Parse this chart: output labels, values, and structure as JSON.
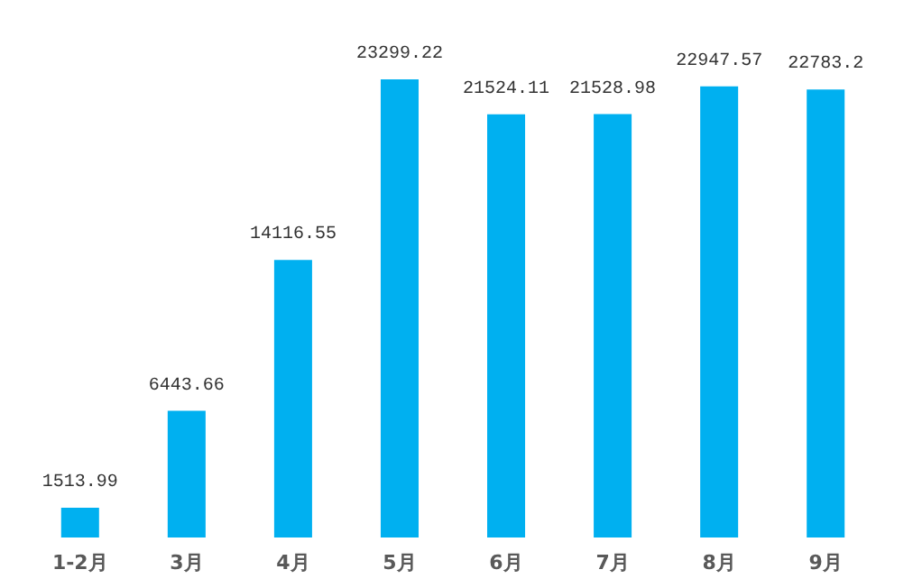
{
  "chart_data": {
    "type": "bar",
    "categories": [
      "1-2月",
      "3月",
      "4月",
      "5月",
      "6月",
      "7月",
      "8月",
      "9月"
    ],
    "values": [
      1513.99,
      6443.66,
      14116.55,
      23299.22,
      21524.11,
      21528.98,
      22947.57,
      22783.2
    ],
    "color": "#00b0f0",
    "data_labels": true
  }
}
